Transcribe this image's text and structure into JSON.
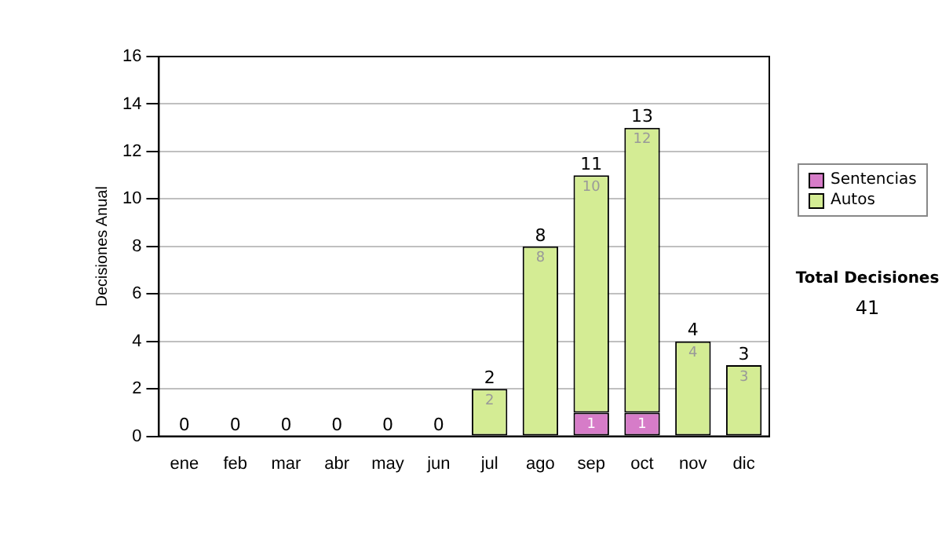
{
  "chart_data": {
    "type": "bar",
    "stacked": true,
    "ylabel": "Decisiones Anual",
    "categories": [
      "ene",
      "feb",
      "mar",
      "abr",
      "may",
      "jun",
      "jul",
      "ago",
      "sep",
      "oct",
      "nov",
      "dic"
    ],
    "series": [
      {
        "name": "Sentencias",
        "color": "#d67cc8",
        "values": [
          0,
          0,
          0,
          0,
          0,
          0,
          0,
          0,
          1,
          1,
          0,
          0
        ],
        "value_labels": [
          null,
          null,
          null,
          null,
          null,
          null,
          null,
          null,
          "1",
          "1",
          null,
          null
        ]
      },
      {
        "name": "Autos",
        "color": "#d4ec94",
        "values": [
          0,
          0,
          0,
          0,
          0,
          0,
          2,
          8,
          10,
          12,
          4,
          3
        ],
        "value_labels": [
          null,
          null,
          null,
          null,
          null,
          null,
          "2",
          "8",
          "10",
          "12",
          "4",
          "3"
        ]
      }
    ],
    "totals": [
      "0",
      "0",
      "0",
      "0",
      "0",
      "0",
      "2",
      "8",
      "11",
      "13",
      "4",
      "3"
    ],
    "ylim": [
      0,
      16
    ],
    "yticks": [
      0,
      2,
      4,
      6,
      8,
      10,
      12,
      14,
      16
    ],
    "grid": "y",
    "legend": "right",
    "annotations": [
      "Total Decisiones",
      "41"
    ]
  }
}
